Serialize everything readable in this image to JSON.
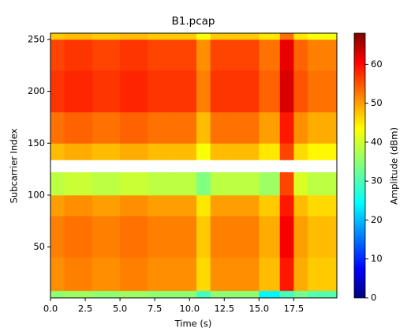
{
  "chart_data": {
    "type": "heatmap",
    "title": "B1.pcap",
    "x_label": "Time (s)",
    "y_label": "Subcarrier Index",
    "colorbar_label": "Amplitude (dBm)",
    "colormap": "jet",
    "xlim": [
      0,
      20.6
    ],
    "ylim": [
      1,
      256
    ],
    "clim": [
      0,
      68
    ],
    "xticks": [
      {
        "value": 0,
        "label": "0.0"
      },
      2.5,
      {
        "value": 5,
        "label": "5.0"
      },
      7.5,
      {
        "value": 10,
        "label": "10.0"
      },
      12.5,
      {
        "value": 15,
        "label": "15.0"
      },
      17.5
    ],
    "yticks": [
      50,
      100,
      150,
      200,
      250
    ],
    "cticks": [
      0,
      10,
      20,
      30,
      40,
      50,
      60
    ],
    "xbins": [
      0,
      1,
      3,
      5,
      7,
      9,
      10.5,
      11.5,
      13,
      15,
      16.5,
      17.5,
      18.5,
      20.6
    ],
    "ybins": [
      1,
      8,
      40,
      80,
      100,
      122,
      134,
      150,
      180,
      220,
      250,
      256
    ],
    "z": [
      [
        35,
        36,
        35,
        36,
        35,
        35,
        30,
        35,
        35,
        25,
        30,
        33,
        31
      ],
      [
        50,
        51,
        50,
        51,
        50,
        50,
        45,
        50,
        50,
        47,
        58,
        48,
        46
      ],
      [
        51,
        52,
        51,
        52,
        51,
        51,
        46,
        51,
        51,
        48,
        60,
        49,
        47
      ],
      [
        49,
        50,
        49,
        50,
        49,
        49,
        44,
        49,
        49,
        46,
        58,
        47,
        45
      ],
      [
        38,
        39,
        38,
        39,
        38,
        38,
        34,
        38,
        38,
        36,
        55,
        40,
        38
      ],
      [
        null,
        null,
        null,
        null,
        null,
        null,
        null,
        null,
        null,
        null,
        null,
        null,
        null
      ],
      [
        47,
        48,
        47,
        48,
        47,
        47,
        42,
        47,
        47,
        44,
        55,
        45,
        43
      ],
      [
        52,
        53,
        52,
        53,
        52,
        52,
        47,
        52,
        52,
        49,
        58,
        50,
        48
      ],
      [
        56,
        57,
        56,
        57,
        56,
        56,
        51,
        56,
        56,
        53,
        62,
        54,
        52
      ],
      [
        55,
        56,
        55,
        56,
        55,
        55,
        50,
        55,
        55,
        52,
        61,
        53,
        51
      ],
      [
        46,
        47,
        46,
        47,
        46,
        46,
        42,
        46,
        46,
        44,
        52,
        44,
        42
      ]
    ]
  }
}
